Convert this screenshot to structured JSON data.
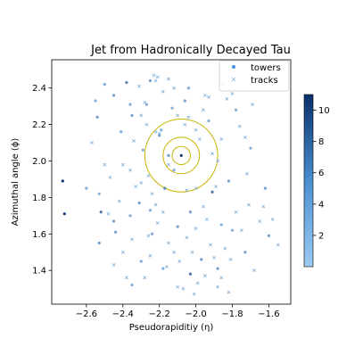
{
  "chart_data": {
    "type": "scatter",
    "title": "Jet from Hadronically Decayed Tau",
    "xlabel": "Pseudorapiditiy (η)",
    "ylabel": "Azimuthal angle (ϕ)",
    "xlim": [
      -2.79,
      -1.48
    ],
    "ylim": [
      1.215,
      2.555
    ],
    "xticks": [
      -2.6,
      -2.4,
      -2.2,
      -2.0,
      -1.8,
      -1.6
    ],
    "xtick_labels": [
      "−2.6",
      "−2.4",
      "−2.2",
      "−2.0",
      "−1.8",
      "−1.6"
    ],
    "yticks": [
      1.4,
      1.6,
      1.8,
      2.0,
      2.2,
      2.4
    ],
    "ytick_labels": [
      "1.4",
      "1.6",
      "1.8",
      "2.0",
      "2.2",
      "2.4"
    ],
    "legend": {
      "placement": "top-right",
      "entries": [
        "towers",
        "tracks"
      ]
    },
    "colorbar": {
      "min": 0,
      "max": 11,
      "ticks": [
        2,
        4,
        6,
        8,
        10
      ],
      "tick_labels": [
        "2",
        "4",
        "6",
        "8",
        "10"
      ],
      "color_low": "#9ccbf2",
      "color_high": "#08306b"
    },
    "circles": {
      "center": [
        -2.08,
        2.03
      ],
      "radii": [
        0.05,
        0.1,
        0.2
      ],
      "color": "#c8b400"
    },
    "grid": false,
    "series": [
      {
        "name": "towers",
        "marker": "dot",
        "points": [
          [
            -2.73,
            1.89,
            10.5
          ],
          [
            -2.72,
            1.71,
            9.5
          ],
          [
            -2.6,
            1.85,
            2
          ],
          [
            -2.55,
            2.33,
            2
          ],
          [
            -2.54,
            2.24,
            3
          ],
          [
            -2.53,
            1.82,
            2
          ],
          [
            -2.52,
            1.72,
            6
          ],
          [
            -2.53,
            1.55,
            3
          ],
          [
            -2.5,
            2.42,
            2
          ],
          [
            -2.45,
            2.36,
            3
          ],
          [
            -2.45,
            1.67,
            3
          ],
          [
            -2.41,
            2.16,
            2
          ],
          [
            -2.38,
            2.43,
            5
          ],
          [
            -2.36,
            2.31,
            2
          ],
          [
            -2.35,
            2.25,
            3
          ],
          [
            -2.36,
            1.7,
            2
          ],
          [
            -2.35,
            1.32,
            2
          ],
          [
            -2.31,
            1.77,
            3
          ],
          [
            -2.29,
            2.06,
            2
          ],
          [
            -2.27,
            2.31,
            2
          ],
          [
            -2.25,
            2.44,
            3
          ],
          [
            -2.25,
            1.73,
            2
          ],
          [
            -2.24,
            1.6,
            2
          ],
          [
            -2.2,
            2.14,
            3
          ],
          [
            -2.19,
            2.17,
            2
          ],
          [
            -2.18,
            1.41,
            2
          ],
          [
            -2.17,
            1.85,
            5
          ],
          [
            -2.15,
            2.03,
            3
          ],
          [
            -2.13,
            2.29,
            2
          ],
          [
            -2.12,
            1.95,
            2
          ],
          [
            -2.1,
            1.64,
            3
          ],
          [
            -2.08,
            2.03,
            10
          ],
          [
            -2.06,
            2.33,
            3
          ],
          [
            -2.04,
            2.4,
            2
          ],
          [
            -2.03,
            1.72,
            3
          ],
          [
            -2.03,
            1.38,
            6
          ],
          [
            -1.97,
            1.46,
            3
          ],
          [
            -1.93,
            2.22,
            2
          ],
          [
            -1.91,
            1.83,
            6
          ],
          [
            -1.88,
            1.41,
            3
          ],
          [
            -1.86,
            1.65,
            2
          ],
          [
            -1.82,
            1.89,
            3
          ],
          [
            -1.8,
            1.62,
            2
          ],
          [
            -1.78,
            2.28,
            2
          ],
          [
            -1.73,
            1.5,
            3
          ],
          [
            -1.7,
            2.07,
            2
          ],
          [
            -1.62,
            1.85,
            3
          ],
          [
            -1.6,
            1.59,
            3
          ],
          [
            -2.3,
            1.45,
            2
          ],
          [
            -2.44,
            1.61,
            3
          ]
        ]
      },
      {
        "name": "tracks",
        "marker": "x",
        "points": [
          [
            -2.23,
            2.47,
            2
          ],
          [
            -2.21,
            2.46,
            2
          ],
          [
            -2.22,
            2.44,
            2
          ],
          [
            -2.15,
            2.45,
            3
          ],
          [
            -2.12,
            2.4,
            2
          ],
          [
            -2.31,
            2.41,
            2
          ],
          [
            -2.3,
            2.25,
            2
          ],
          [
            -2.27,
            2.2,
            2
          ],
          [
            -2.22,
            2.16,
            2
          ],
          [
            -2.2,
            2.15,
            2
          ],
          [
            -2.1,
            2.25,
            2
          ],
          [
            -2.06,
            2.2,
            2
          ],
          [
            -2.04,
            2.24,
            2
          ],
          [
            -2.0,
            2.17,
            2
          ],
          [
            -1.98,
            2.12,
            2
          ],
          [
            -1.96,
            2.28,
            2
          ],
          [
            -1.93,
            2.35,
            2
          ],
          [
            -1.91,
            2.04,
            2
          ],
          [
            -1.88,
            2.0,
            2
          ],
          [
            -1.86,
            2.12,
            2
          ],
          [
            -1.83,
            2.34,
            2
          ],
          [
            -1.8,
            2.37,
            2
          ],
          [
            -1.76,
            2.19,
            2
          ],
          [
            -1.73,
            2.13,
            2
          ],
          [
            -2.4,
            1.98,
            2
          ],
          [
            -2.36,
            1.95,
            2
          ],
          [
            -2.33,
            1.86,
            2
          ],
          [
            -2.3,
            1.88,
            2
          ],
          [
            -2.26,
            1.92,
            2
          ],
          [
            -2.24,
            1.82,
            2
          ],
          [
            -2.22,
            1.76,
            2
          ],
          [
            -2.21,
            1.66,
            2
          ],
          [
            -2.18,
            1.72,
            2
          ],
          [
            -2.15,
            1.55,
            2
          ],
          [
            -2.12,
            1.5,
            2
          ],
          [
            -2.09,
            1.45,
            2
          ],
          [
            -2.05,
            1.58,
            2
          ],
          [
            -2.02,
            1.5,
            2
          ],
          [
            -2.0,
            1.63,
            2
          ],
          [
            -1.96,
            1.75,
            2
          ],
          [
            -1.94,
            1.68,
            2
          ],
          [
            -1.92,
            1.54,
            2
          ],
          [
            -1.9,
            1.47,
            2
          ],
          [
            -1.88,
            1.31,
            2
          ],
          [
            -1.86,
            1.36,
            2
          ],
          [
            -1.84,
            1.52,
            2
          ],
          [
            -1.81,
            1.46,
            2
          ],
          [
            -1.78,
            1.72,
            2
          ],
          [
            -1.75,
            1.62,
            2
          ],
          [
            -1.71,
            1.76,
            2
          ],
          [
            -1.68,
            1.4,
            2
          ],
          [
            -1.65,
            1.67,
            2
          ],
          [
            -1.58,
            1.68,
            2
          ],
          [
            -1.55,
            1.54,
            2
          ],
          [
            -2.45,
            1.43,
            2
          ],
          [
            -2.4,
            1.5,
            2
          ],
          [
            -2.38,
            1.36,
            2
          ],
          [
            -2.35,
            1.57,
            2
          ],
          [
            -2.28,
            1.36,
            2
          ],
          [
            -2.25,
            1.48,
            2
          ],
          [
            -2.16,
            1.42,
            2
          ],
          [
            -2.1,
            1.31,
            2
          ],
          [
            -2.07,
            1.3,
            2
          ],
          [
            -1.99,
            1.33,
            2
          ],
          [
            -1.95,
            1.37,
            2
          ],
          [
            -2.57,
            2.1,
            2
          ],
          [
            -2.5,
            1.98,
            2
          ],
          [
            -2.47,
            1.91,
            2
          ],
          [
            -2.05,
            1.84,
            2
          ],
          [
            -2.0,
            1.85,
            2
          ],
          [
            -1.89,
            1.86,
            2
          ],
          [
            -1.72,
            1.93,
            2
          ],
          [
            -2.15,
            1.98,
            2
          ],
          [
            -2.28,
            2.32,
            2
          ],
          [
            -2.34,
            2.11,
            2
          ],
          [
            -1.95,
            2.36,
            2
          ],
          [
            -1.85,
            2.42,
            2
          ],
          [
            -2.18,
            2.38,
            2
          ],
          [
            -1.69,
            2.31,
            2
          ],
          [
            -1.63,
            1.75,
            2
          ],
          [
            -2.42,
            1.78,
            2
          ],
          [
            -2.48,
            1.71,
            2
          ],
          [
            -2.26,
            1.59,
            2
          ],
          [
            -1.82,
            1.28,
            2
          ],
          [
            -2.01,
            1.27,
            2
          ]
        ]
      }
    ]
  }
}
